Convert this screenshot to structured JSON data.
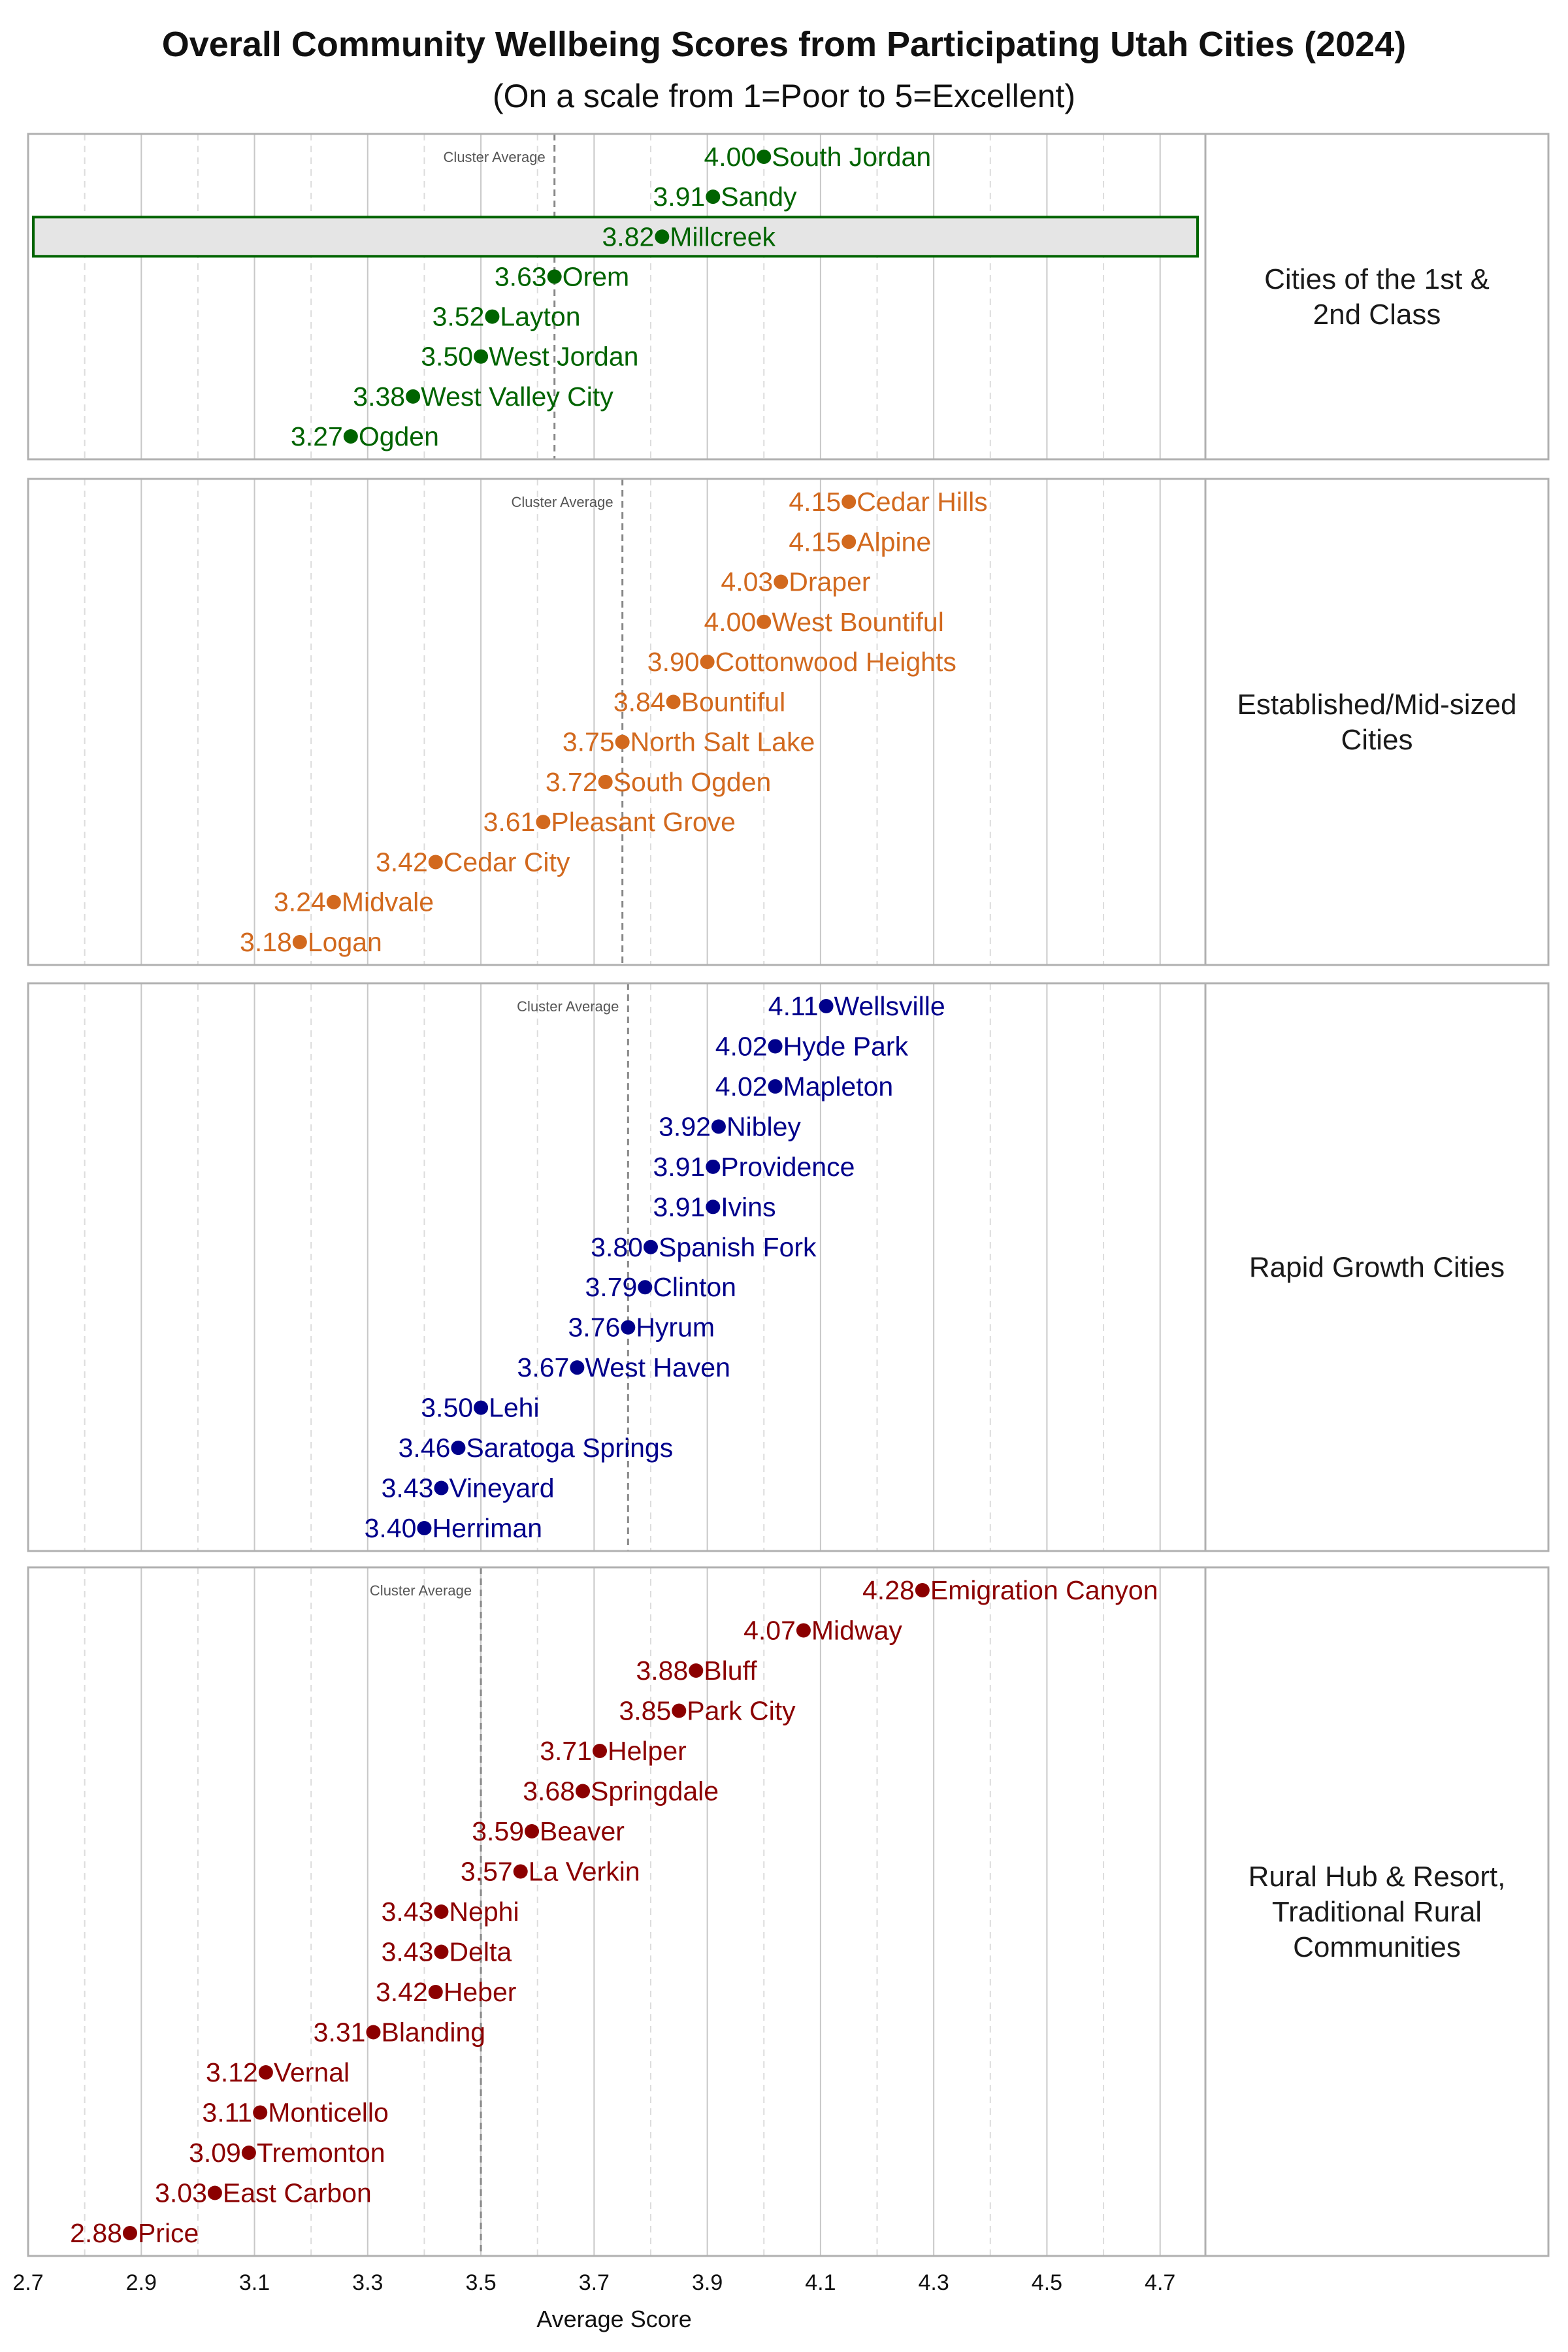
{
  "chart_data": {
    "type": "scatter",
    "title": "Overall Community Wellbeing Scores from Participating Utah Cities (2024)",
    "subtitle": "(On a scale from 1=Poor to 5=Excellent)",
    "xlabel": "Average Score",
    "xlim": [
      2.7,
      4.78
    ],
    "xticks": [
      "2.7",
      "2.9",
      "3.1",
      "3.3",
      "3.5",
      "3.7",
      "3.9",
      "4.1",
      "4.3",
      "4.5",
      "4.7"
    ],
    "grid": true,
    "cluster_average_label": "Cluster Average",
    "highlight_color": "#006400",
    "panels": [
      {
        "name": "Cities of the 1st & 2nd Class",
        "name_lines": [
          "Cities of the 1st &",
          "2nd Class"
        ],
        "color": "#006400",
        "cluster_average": 3.63,
        "cities": [
          {
            "name": "South Jordan",
            "value": 4.0
          },
          {
            "name": "Sandy",
            "value": 3.91
          },
          {
            "name": "Millcreek",
            "value": 3.82,
            "highlight": true
          },
          {
            "name": "Orem",
            "value": 3.63
          },
          {
            "name": "Layton",
            "value": 3.52
          },
          {
            "name": "West Jordan",
            "value": 3.5
          },
          {
            "name": "West Valley City",
            "value": 3.38
          },
          {
            "name": "Ogden",
            "value": 3.27
          }
        ]
      },
      {
        "name": "Established/Mid-sized Cities",
        "name_lines": [
          "Established/Mid-sized",
          "Cities"
        ],
        "color": "#D2691E",
        "cluster_average": 3.75,
        "cities": [
          {
            "name": "Cedar Hills",
            "value": 4.15
          },
          {
            "name": "Alpine",
            "value": 4.15
          },
          {
            "name": "Draper",
            "value": 4.03
          },
          {
            "name": "West Bountiful",
            "value": 4.0
          },
          {
            "name": "Cottonwood Heights",
            "value": 3.9
          },
          {
            "name": "Bountiful",
            "value": 3.84
          },
          {
            "name": "North Salt Lake",
            "value": 3.75
          },
          {
            "name": "South Ogden",
            "value": 3.72
          },
          {
            "name": "Pleasant Grove",
            "value": 3.61
          },
          {
            "name": "Cedar City",
            "value": 3.42
          },
          {
            "name": "Midvale",
            "value": 3.24
          },
          {
            "name": "Logan",
            "value": 3.18
          }
        ]
      },
      {
        "name": "Rapid Growth Cities",
        "name_lines": [
          "Rapid Growth Cities"
        ],
        "color": "#00008B",
        "cluster_average": 3.76,
        "cities": [
          {
            "name": "Wellsville",
            "value": 4.11
          },
          {
            "name": "Hyde Park",
            "value": 4.02
          },
          {
            "name": "Mapleton",
            "value": 4.02
          },
          {
            "name": "Nibley",
            "value": 3.92
          },
          {
            "name": "Providence",
            "value": 3.91
          },
          {
            "name": "Ivins",
            "value": 3.91
          },
          {
            "name": "Spanish Fork",
            "value": 3.8
          },
          {
            "name": "Clinton",
            "value": 3.79
          },
          {
            "name": "Hyrum",
            "value": 3.76
          },
          {
            "name": "West Haven",
            "value": 3.67
          },
          {
            "name": "Lehi",
            "value": 3.5
          },
          {
            "name": "Saratoga Springs",
            "value": 3.46
          },
          {
            "name": "Vineyard",
            "value": 3.43
          },
          {
            "name": "Herriman",
            "value": 3.4
          }
        ]
      },
      {
        "name": "Rural Hub & Resort, Traditional Rural Communities",
        "name_lines": [
          "Rural Hub & Resort,",
          "Traditional Rural",
          "Communities"
        ],
        "color": "#8B0000",
        "cluster_average": 3.5,
        "cities": [
          {
            "name": "Emigration Canyon",
            "value": 4.28
          },
          {
            "name": "Midway",
            "value": 4.07
          },
          {
            "name": "Bluff",
            "value": 3.88
          },
          {
            "name": "Park City",
            "value": 3.85
          },
          {
            "name": "Helper",
            "value": 3.71
          },
          {
            "name": "Springdale",
            "value": 3.68
          },
          {
            "name": "Beaver",
            "value": 3.59
          },
          {
            "name": "La Verkin",
            "value": 3.57
          },
          {
            "name": "Nephi",
            "value": 3.43
          },
          {
            "name": "Delta",
            "value": 3.43
          },
          {
            "name": "Heber",
            "value": 3.42
          },
          {
            "name": "Blanding",
            "value": 3.31
          },
          {
            "name": "Vernal",
            "value": 3.12
          },
          {
            "name": "Monticello",
            "value": 3.11
          },
          {
            "name": "Tremonton",
            "value": 3.09
          },
          {
            "name": "East Carbon",
            "value": 3.03
          },
          {
            "name": "Price",
            "value": 2.88
          }
        ]
      }
    ]
  }
}
